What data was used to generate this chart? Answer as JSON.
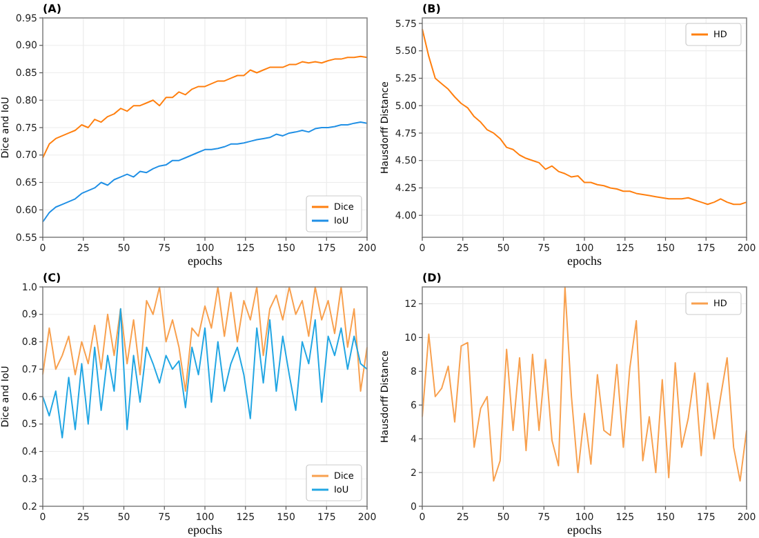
{
  "chart_data": [
    {
      "type": "line",
      "title": "(A)",
      "xlabel": "epochs",
      "ylabel": "Dice and IoU",
      "xlim": [
        0,
        200
      ],
      "xticks": [
        0,
        25,
        50,
        75,
        100,
        125,
        150,
        175,
        200
      ],
      "ylim": [
        0.55,
        0.95
      ],
      "yticks": [
        {
          "value": 0.55,
          "label": "0.55"
        },
        {
          "value": 0.6,
          "label": "0.60"
        },
        {
          "value": 0.65,
          "label": "0.65"
        },
        {
          "value": 0.7,
          "label": "0.70"
        },
        {
          "value": 0.75,
          "label": "0.75"
        },
        {
          "value": 0.8,
          "label": "0.80"
        },
        {
          "value": 0.85,
          "label": "0.85"
        },
        {
          "value": 0.9,
          "label": "0.90"
        },
        {
          "value": 0.95,
          "label": "0.95"
        }
      ],
      "grid": true,
      "legend": "bottom right",
      "x": [
        0,
        4,
        8,
        12,
        16,
        20,
        24,
        28,
        32,
        36,
        40,
        44,
        48,
        52,
        56,
        60,
        64,
        68,
        72,
        76,
        80,
        84,
        88,
        92,
        96,
        100,
        104,
        108,
        112,
        116,
        120,
        124,
        128,
        132,
        136,
        140,
        144,
        148,
        152,
        156,
        160,
        164,
        168,
        172,
        176,
        180,
        184,
        188,
        192,
        196,
        200
      ],
      "series": [
        {
          "name": "Dice",
          "color": "#ff7f0e",
          "values": [
            0.695,
            0.72,
            0.73,
            0.735,
            0.74,
            0.745,
            0.755,
            0.75,
            0.765,
            0.76,
            0.77,
            0.775,
            0.785,
            0.78,
            0.79,
            0.79,
            0.795,
            0.8,
            0.79,
            0.805,
            0.805,
            0.815,
            0.81,
            0.82,
            0.825,
            0.825,
            0.83,
            0.835,
            0.835,
            0.84,
            0.845,
            0.845,
            0.855,
            0.85,
            0.855,
            0.86,
            0.86,
            0.86,
            0.865,
            0.865,
            0.87,
            0.868,
            0.87,
            0.868,
            0.872,
            0.875,
            0.875,
            0.878,
            0.878,
            0.88,
            0.878
          ]
        },
        {
          "name": "IoU",
          "color": "#1f8fe5",
          "values": [
            0.578,
            0.595,
            0.605,
            0.61,
            0.615,
            0.62,
            0.63,
            0.635,
            0.64,
            0.65,
            0.645,
            0.655,
            0.66,
            0.665,
            0.66,
            0.67,
            0.668,
            0.675,
            0.68,
            0.682,
            0.69,
            0.69,
            0.695,
            0.7,
            0.705,
            0.71,
            0.71,
            0.712,
            0.715,
            0.72,
            0.72,
            0.722,
            0.725,
            0.728,
            0.73,
            0.732,
            0.738,
            0.735,
            0.74,
            0.742,
            0.745,
            0.742,
            0.748,
            0.75,
            0.75,
            0.752,
            0.755,
            0.755,
            0.758,
            0.76,
            0.758
          ]
        }
      ]
    },
    {
      "type": "line",
      "title": "(B)",
      "xlabel": "epochs",
      "ylabel": "Hausdorff Distance",
      "xlim": [
        0,
        200
      ],
      "xticks": [
        0,
        25,
        50,
        75,
        100,
        125,
        150,
        175,
        200
      ],
      "ylim": [
        3.8,
        5.8
      ],
      "yticks": [
        {
          "value": 4,
          "label": "4.00"
        },
        {
          "value": 4.25,
          "label": "4.25"
        },
        {
          "value": 4.5,
          "label": "4.50"
        },
        {
          "value": 4.75,
          "label": "4.75"
        },
        {
          "value": 5,
          "label": "5.00"
        },
        {
          "value": 5.25,
          "label": "5.25"
        },
        {
          "value": 5.5,
          "label": "5.50"
        },
        {
          "value": 5.75,
          "label": "5.75"
        }
      ],
      "grid": true,
      "legend": "top right",
      "x": [
        0,
        4,
        8,
        12,
        16,
        20,
        24,
        28,
        32,
        36,
        40,
        44,
        48,
        52,
        56,
        60,
        64,
        68,
        72,
        76,
        80,
        84,
        88,
        92,
        96,
        100,
        104,
        108,
        112,
        116,
        120,
        124,
        128,
        132,
        136,
        140,
        144,
        148,
        152,
        156,
        160,
        164,
        168,
        172,
        176,
        180,
        184,
        188,
        192,
        196,
        200
      ],
      "series": [
        {
          "name": "HD",
          "color": "#ff7f0e",
          "values": [
            5.7,
            5.45,
            5.25,
            5.2,
            5.15,
            5.08,
            5.02,
            4.98,
            4.9,
            4.85,
            4.78,
            4.75,
            4.7,
            4.62,
            4.6,
            4.55,
            4.52,
            4.5,
            4.48,
            4.42,
            4.45,
            4.4,
            4.38,
            4.35,
            4.36,
            4.3,
            4.3,
            4.28,
            4.27,
            4.25,
            4.24,
            4.22,
            4.22,
            4.2,
            4.19,
            4.18,
            4.17,
            4.16,
            4.15,
            4.15,
            4.15,
            4.16,
            4.14,
            4.12,
            4.1,
            4.12,
            4.15,
            4.12,
            4.1,
            4.1,
            4.12
          ]
        }
      ]
    },
    {
      "type": "line",
      "title": "(C)",
      "xlabel": "epochs",
      "ylabel": "Dice and IoU",
      "xlim": [
        0,
        200
      ],
      "xticks": [
        0,
        25,
        50,
        75,
        100,
        125,
        150,
        175,
        200
      ],
      "ylim": [
        0.2,
        1
      ],
      "yticks": [
        0.2,
        0.3,
        0.4,
        0.5,
        0.6,
        0.7,
        0.8,
        0.9,
        {
          "value": 1,
          "label": "1.0"
        }
      ],
      "grid": true,
      "legend": "bottom right",
      "x": [
        0,
        4,
        8,
        12,
        16,
        20,
        24,
        28,
        32,
        36,
        40,
        44,
        48,
        52,
        56,
        60,
        64,
        68,
        72,
        76,
        80,
        84,
        88,
        92,
        96,
        100,
        104,
        108,
        112,
        116,
        120,
        124,
        128,
        132,
        136,
        140,
        144,
        148,
        152,
        156,
        160,
        164,
        168,
        172,
        176,
        180,
        184,
        188,
        192,
        196,
        200
      ],
      "series": [
        {
          "name": "Dice",
          "color": "#f8a04e",
          "values": [
            0.68,
            0.85,
            0.7,
            0.75,
            0.82,
            0.68,
            0.8,
            0.72,
            0.86,
            0.7,
            0.9,
            0.75,
            0.92,
            0.72,
            0.88,
            0.68,
            0.95,
            0.9,
            1.0,
            0.8,
            0.88,
            0.78,
            0.62,
            0.85,
            0.82,
            0.93,
            0.85,
            1.0,
            0.82,
            0.98,
            0.8,
            0.95,
            0.88,
            1.0,
            0.75,
            0.92,
            0.97,
            0.88,
            1.0,
            0.9,
            0.95,
            0.82,
            1.0,
            0.88,
            0.95,
            0.83,
            1.0,
            0.78,
            0.92,
            0.62,
            0.78
          ]
        },
        {
          "name": "IoU",
          "color": "#22a6e3",
          "values": [
            0.6,
            0.53,
            0.62,
            0.45,
            0.67,
            0.48,
            0.72,
            0.5,
            0.78,
            0.55,
            0.75,
            0.62,
            0.92,
            0.48,
            0.75,
            0.58,
            0.78,
            0.72,
            0.65,
            0.75,
            0.7,
            0.73,
            0.56,
            0.78,
            0.68,
            0.85,
            0.58,
            0.8,
            0.62,
            0.72,
            0.78,
            0.68,
            0.52,
            0.85,
            0.65,
            0.88,
            0.62,
            0.82,
            0.68,
            0.55,
            0.8,
            0.72,
            0.88,
            0.58,
            0.82,
            0.75,
            0.85,
            0.7,
            0.82,
            0.72,
            0.7
          ]
        }
      ]
    },
    {
      "type": "line",
      "title": "(D)",
      "xlabel": "epochs",
      "ylabel": "Hausdorff Distance",
      "xlim": [
        0,
        200
      ],
      "xticks": [
        0,
        25,
        50,
        75,
        100,
        125,
        150,
        175,
        200
      ],
      "ylim": [
        0,
        13
      ],
      "yticks": [
        0,
        2,
        4,
        6,
        8,
        10,
        12
      ],
      "grid": true,
      "legend": "top right",
      "x": [
        0,
        4,
        8,
        12,
        16,
        20,
        24,
        28,
        32,
        36,
        40,
        44,
        48,
        52,
        56,
        60,
        64,
        68,
        72,
        76,
        80,
        84,
        88,
        92,
        96,
        100,
        104,
        108,
        112,
        116,
        120,
        124,
        128,
        132,
        136,
        140,
        144,
        148,
        152,
        156,
        160,
        164,
        168,
        172,
        176,
        180,
        184,
        188,
        192,
        196,
        200
      ],
      "series": [
        {
          "name": "HD",
          "color": "#f8a04e",
          "values": [
            5.3,
            10.2,
            6.5,
            7.0,
            8.3,
            5.0,
            9.5,
            9.7,
            3.5,
            5.8,
            6.5,
            1.5,
            2.7,
            9.3,
            4.5,
            8.8,
            3.3,
            9.0,
            4.5,
            8.7,
            3.9,
            2.4,
            13.0,
            6.5,
            2.0,
            5.5,
            2.5,
            7.8,
            4.5,
            4.2,
            8.4,
            3.5,
            8.2,
            11.0,
            2.7,
            5.3,
            2.0,
            7.5,
            1.7,
            8.5,
            3.5,
            5.2,
            7.9,
            3.0,
            7.3,
            4.0,
            6.5,
            8.8,
            3.5,
            1.5,
            4.5
          ]
        }
      ]
    }
  ]
}
